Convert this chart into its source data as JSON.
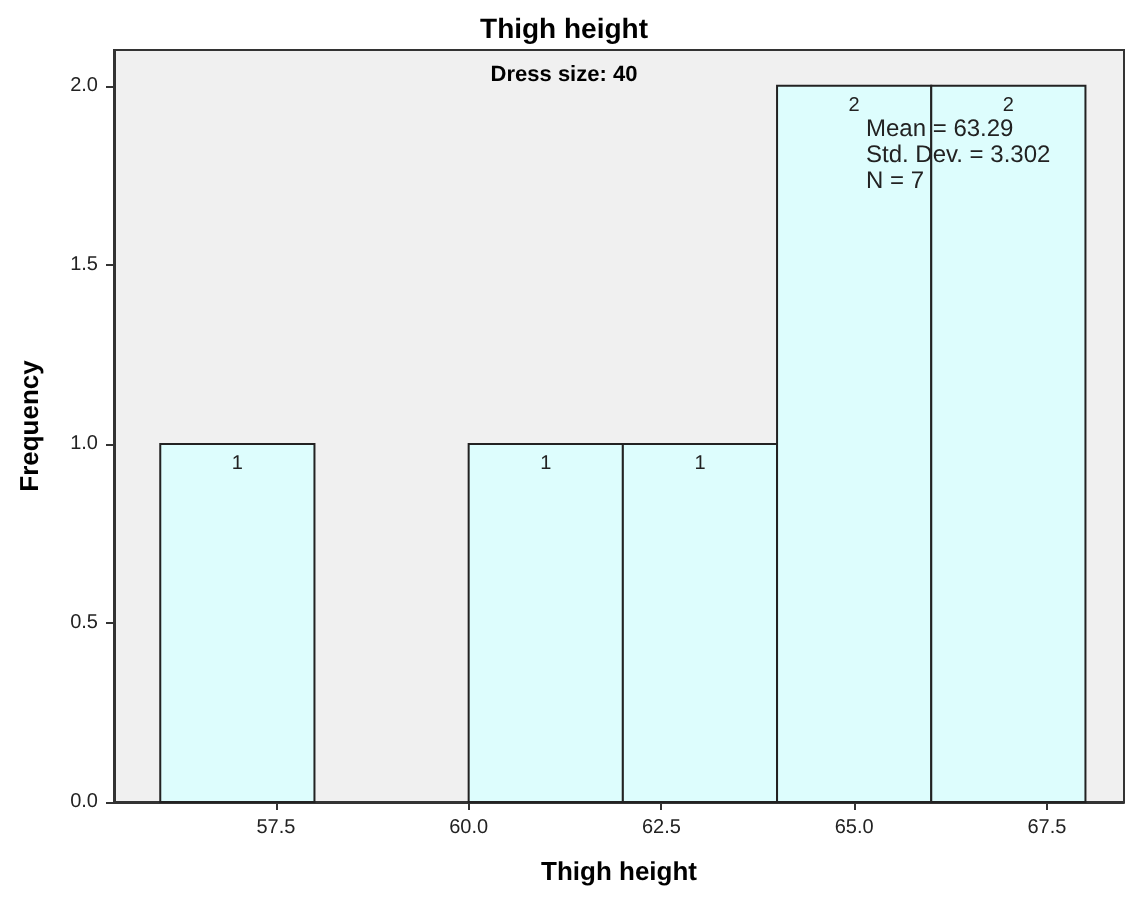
{
  "chart_data": {
    "type": "histogram",
    "title": "Thigh height",
    "subtitle": "Dress size: 40",
    "xlabel": "Thigh height",
    "ylabel": "Frequency",
    "bins": [
      56,
      58,
      60,
      62,
      64,
      66,
      68
    ],
    "values": [
      1,
      0,
      1,
      1,
      2,
      2
    ],
    "value_labels": [
      "1",
      null,
      "1",
      "1",
      "2",
      "2"
    ],
    "color": "#ddfdfd",
    "xlim": [
      55.4,
      68.5
    ],
    "xticks": [
      57.5,
      {
        "value": 60,
        "label": "60.0"
      },
      62.5,
      {
        "value": 65,
        "label": "65.0"
      },
      67.5
    ],
    "ylim": [
      0,
      2.1
    ],
    "yticks": [
      {
        "value": 0,
        "label": "0.0"
      },
      0.5,
      {
        "value": 1,
        "label": "1.0"
      },
      1.5,
      {
        "value": 2,
        "label": "2.0"
      }
    ],
    "annotations": [
      "Mean = 63.29",
      "Std. Dev. = 3.302",
      "N = 7"
    ]
  }
}
